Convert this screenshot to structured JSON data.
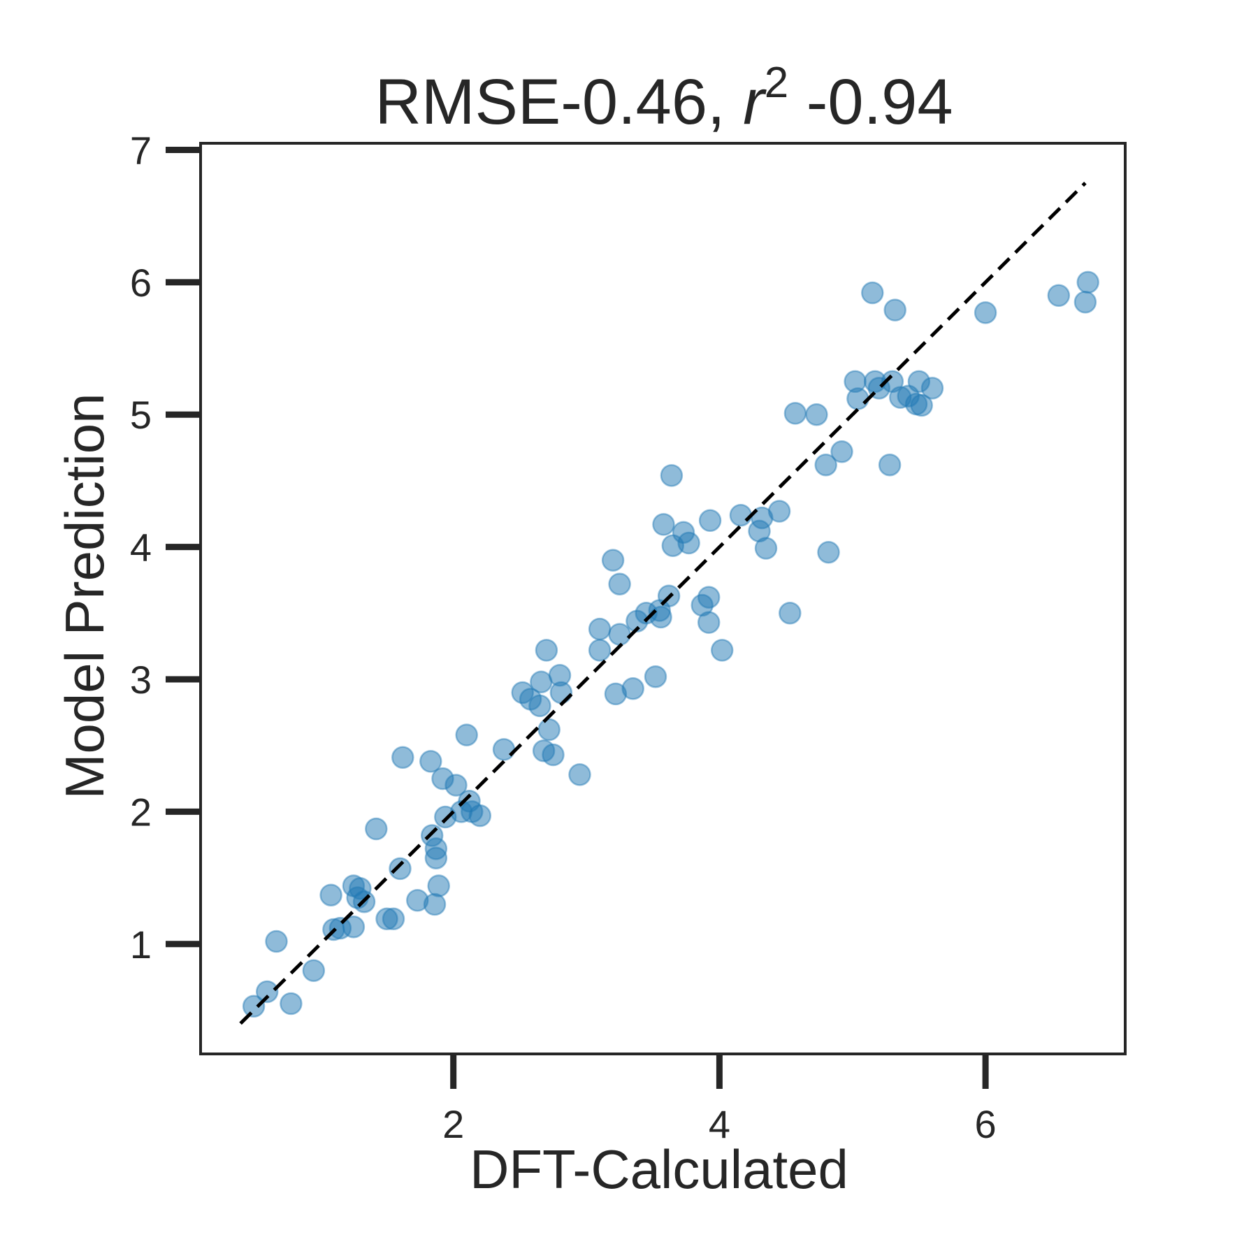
{
  "chart_data": {
    "type": "scatter",
    "title": {
      "prefix": "RMSE-0.46, ",
      "var": "r",
      "sup": "2",
      "suffix": " -0.94"
    },
    "xlabel": "DFT-Calculated",
    "ylabel": "Model Prediction",
    "xlim": [
      0.1,
      7.05
    ],
    "ylim": [
      0.17,
      7.05
    ],
    "xticks": [
      2,
      4,
      6
    ],
    "yticks": [
      1,
      2,
      3,
      4,
      5,
      6,
      7
    ],
    "grid": false,
    "point_color": "#1f77b4",
    "point_opacity": 0.5,
    "reference_line": {
      "x": [
        0.4,
        6.75
      ],
      "y": [
        0.4,
        6.75
      ],
      "style": "dashed",
      "color": "#000000"
    },
    "points": [
      [
        0.5,
        0.53
      ],
      [
        0.6,
        0.64
      ],
      [
        0.67,
        1.02
      ],
      [
        0.78,
        0.55
      ],
      [
        0.95,
        0.8
      ],
      [
        1.08,
        1.37
      ],
      [
        1.1,
        1.11
      ],
      [
        1.15,
        1.12
      ],
      [
        1.25,
        1.13
      ],
      [
        1.25,
        1.44
      ],
      [
        1.28,
        1.35
      ],
      [
        1.3,
        1.42
      ],
      [
        1.33,
        1.32
      ],
      [
        1.42,
        1.87
      ],
      [
        1.5,
        1.19
      ],
      [
        1.55,
        1.19
      ],
      [
        1.6,
        1.57
      ],
      [
        1.62,
        2.41
      ],
      [
        1.73,
        1.33
      ],
      [
        1.83,
        2.38
      ],
      [
        1.84,
        1.82
      ],
      [
        1.87,
        1.72
      ],
      [
        1.87,
        1.65
      ],
      [
        1.86,
        1.3
      ],
      [
        1.89,
        1.44
      ],
      [
        1.92,
        2.25
      ],
      [
        1.94,
        1.96
      ],
      [
        2.02,
        2.2
      ],
      [
        2.06,
        2.0
      ],
      [
        2.1,
        2.58
      ],
      [
        2.12,
        2.08
      ],
      [
        2.14,
        2.0
      ],
      [
        2.2,
        1.97
      ],
      [
        2.38,
        2.47
      ],
      [
        2.52,
        2.9
      ],
      [
        2.58,
        2.85
      ],
      [
        2.65,
        2.8
      ],
      [
        2.66,
        2.98
      ],
      [
        2.68,
        2.46
      ],
      [
        2.7,
        3.22
      ],
      [
        2.72,
        2.62
      ],
      [
        2.75,
        2.43
      ],
      [
        2.8,
        3.03
      ],
      [
        2.81,
        2.9
      ],
      [
        2.95,
        2.28
      ],
      [
        3.1,
        3.38
      ],
      [
        3.1,
        3.22
      ],
      [
        3.2,
        3.9
      ],
      [
        3.22,
        2.89
      ],
      [
        3.25,
        3.72
      ],
      [
        3.25,
        3.34
      ],
      [
        3.35,
        2.93
      ],
      [
        3.38,
        3.44
      ],
      [
        3.45,
        3.5
      ],
      [
        3.52,
        3.02
      ],
      [
        3.55,
        3.52
      ],
      [
        3.56,
        3.47
      ],
      [
        3.58,
        4.17
      ],
      [
        3.62,
        3.63
      ],
      [
        3.64,
        4.54
      ],
      [
        3.65,
        4.01
      ],
      [
        3.73,
        4.11
      ],
      [
        3.77,
        4.03
      ],
      [
        3.87,
        3.56
      ],
      [
        3.92,
        3.62
      ],
      [
        3.92,
        3.43
      ],
      [
        3.93,
        4.2
      ],
      [
        4.02,
        3.22
      ],
      [
        4.16,
        4.24
      ],
      [
        4.3,
        4.12
      ],
      [
        4.32,
        4.22
      ],
      [
        4.35,
        3.99
      ],
      [
        4.45,
        4.27
      ],
      [
        4.53,
        3.5
      ],
      [
        4.57,
        5.01
      ],
      [
        4.73,
        5.0
      ],
      [
        4.8,
        4.62
      ],
      [
        4.82,
        3.96
      ],
      [
        4.92,
        4.72
      ],
      [
        5.02,
        5.25
      ],
      [
        5.04,
        5.12
      ],
      [
        5.15,
        5.92
      ],
      [
        5.17,
        5.25
      ],
      [
        5.2,
        5.2
      ],
      [
        5.28,
        4.62
      ],
      [
        5.3,
        5.25
      ],
      [
        5.32,
        5.79
      ],
      [
        5.36,
        5.13
      ],
      [
        5.42,
        5.14
      ],
      [
        5.48,
        5.08
      ],
      [
        5.5,
        5.25
      ],
      [
        5.52,
        5.07
      ],
      [
        5.6,
        5.2
      ],
      [
        6.0,
        5.77
      ],
      [
        6.55,
        5.9
      ],
      [
        6.75,
        5.85
      ],
      [
        6.77,
        6.0
      ]
    ]
  }
}
